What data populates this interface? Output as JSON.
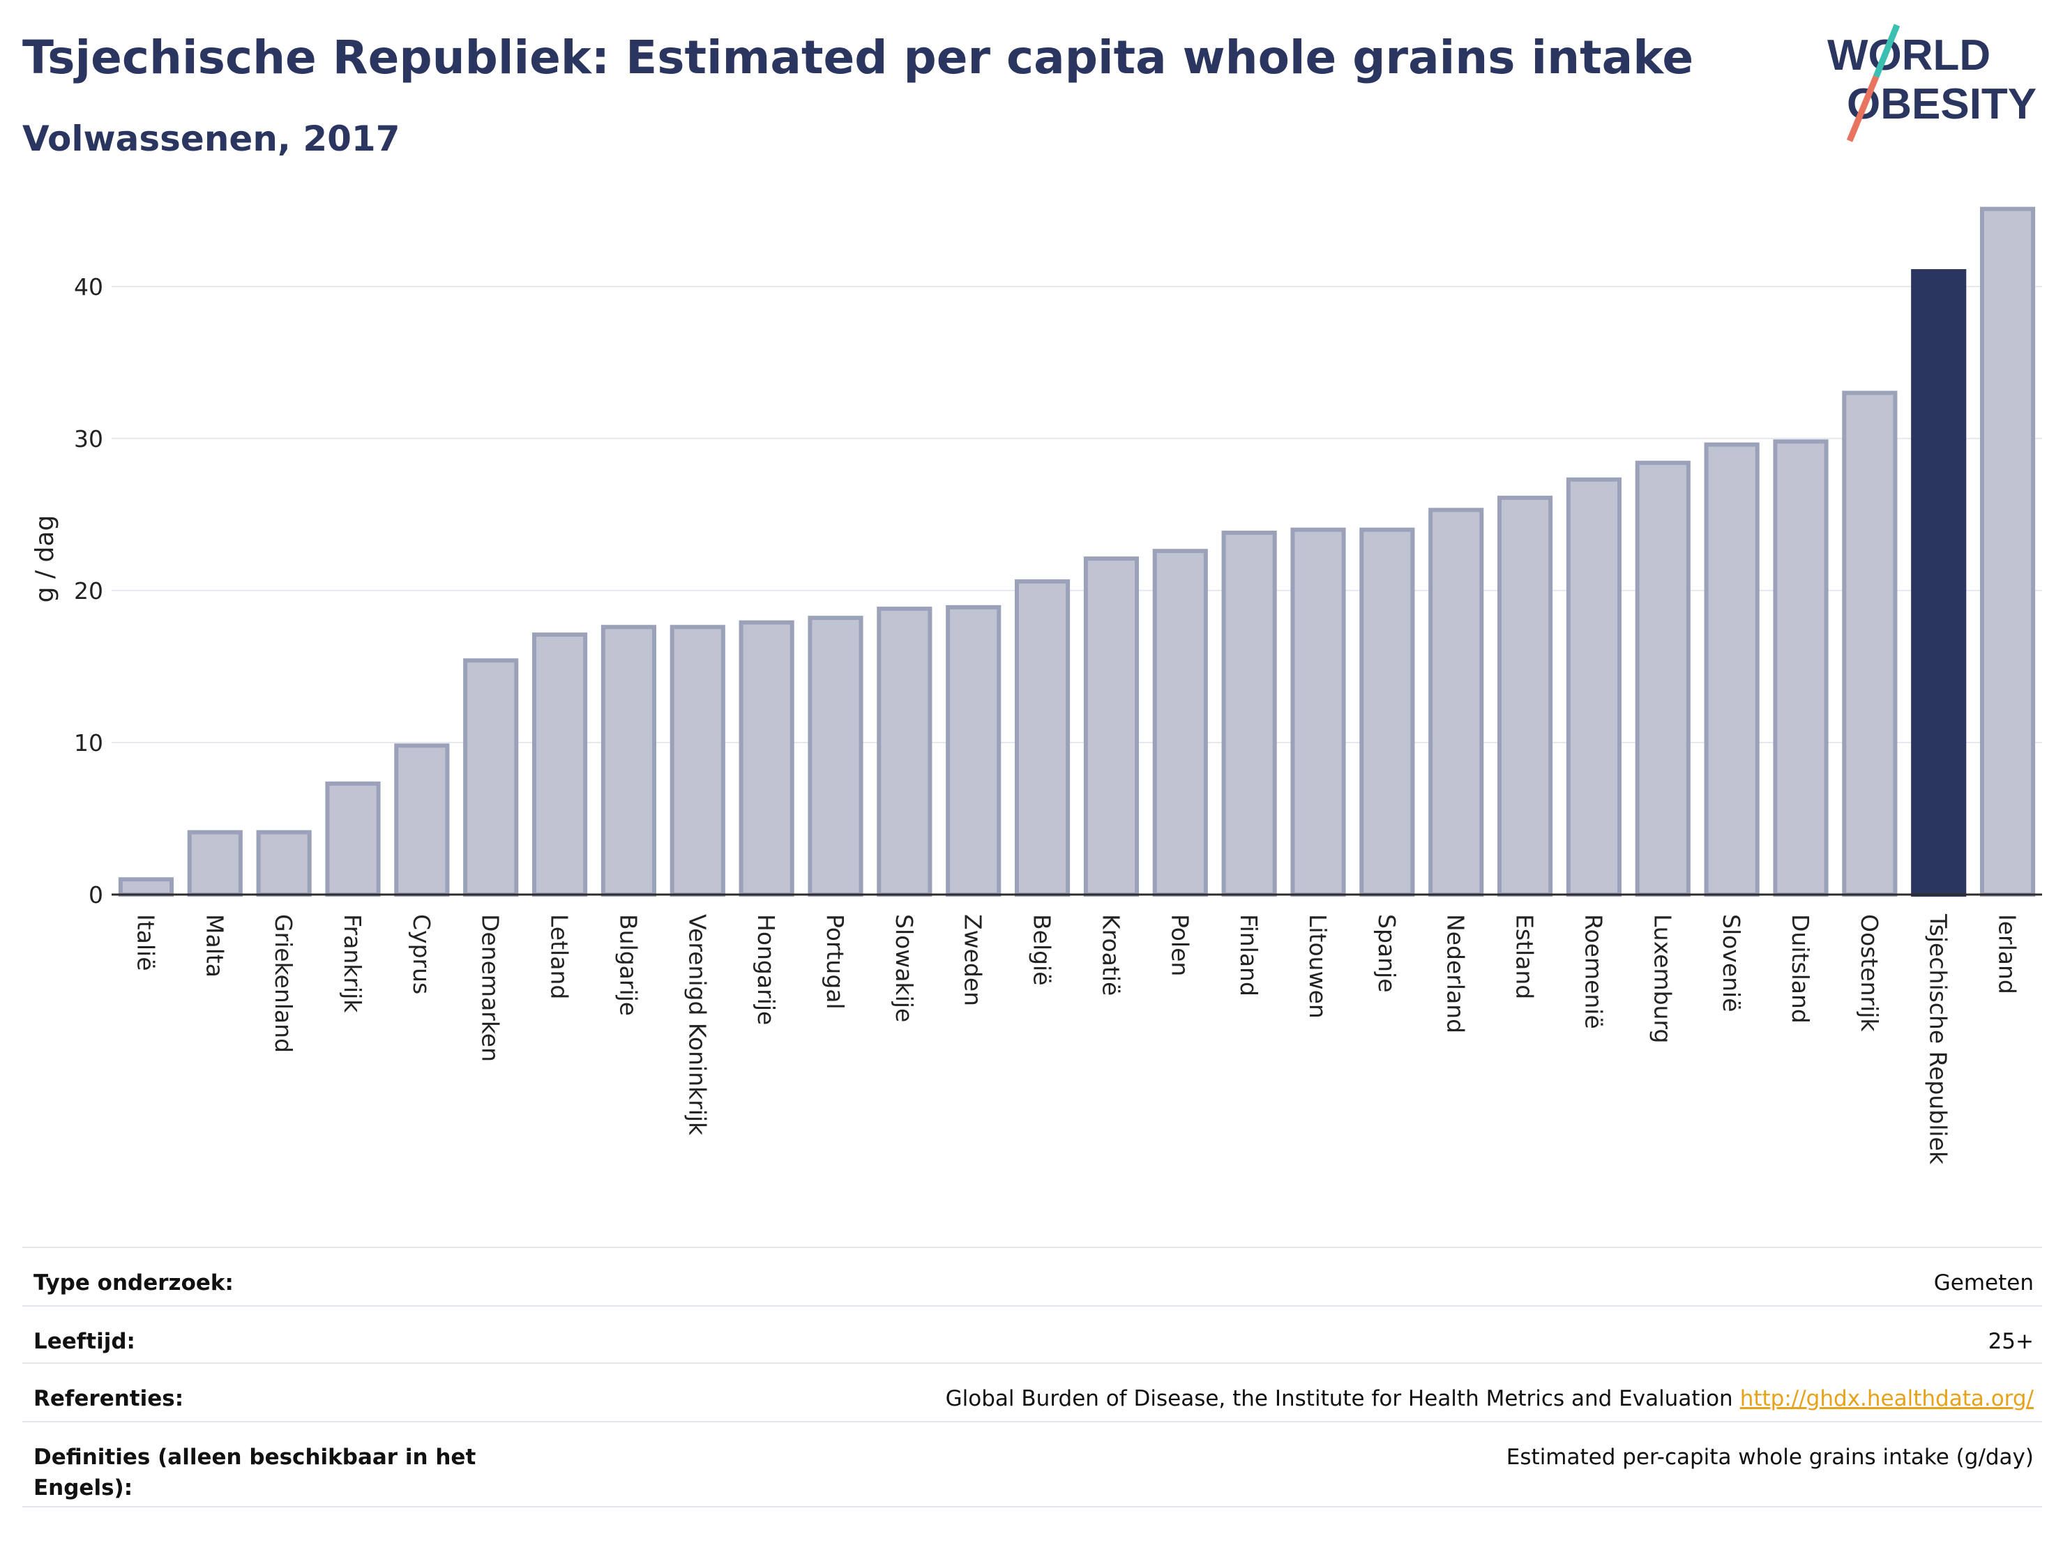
{
  "header": {
    "title": "Tsjechische Republiek: Estimated per capita whole grains intake",
    "subtitle": "Volwassenen, 2017"
  },
  "logo": {
    "line1": "WORLD",
    "line2": "OBESITY"
  },
  "chart_data": {
    "type": "bar",
    "ylabel": "g / dag",
    "ylim": [
      0,
      46
    ],
    "yticks": [
      0,
      10,
      20,
      30,
      40
    ],
    "grid": true,
    "categories": [
      "Italië",
      "Malta",
      "Griekenland",
      "Frankrijk",
      "Cyprus",
      "Denemarken",
      "Letland",
      "Bulgarije",
      "Verenigd Koninkrijk",
      "Hongarije",
      "Portugal",
      "Slowakije",
      "Zweden",
      "België",
      "Kroatië",
      "Polen",
      "Finland",
      "Litouwen",
      "Spanje",
      "Nederland",
      "Estland",
      "Roemenië",
      "Luxemburg",
      "Slovenië",
      "Duitsland",
      "Oostenrijk",
      "Tsjechische Republiek",
      "Ierland"
    ],
    "values": [
      1.0,
      4.1,
      4.1,
      7.3,
      9.8,
      15.4,
      17.1,
      17.6,
      17.6,
      17.9,
      18.2,
      18.8,
      18.9,
      20.6,
      22.1,
      22.6,
      23.8,
      24.0,
      24.0,
      25.3,
      26.1,
      27.3,
      28.4,
      29.6,
      29.8,
      33.0,
      41.0,
      45.1
    ],
    "highlight": "Tsjechische Republiek",
    "colors": {
      "bar": "#bfc3d2",
      "bar_edge": "#9ba1b8",
      "highlight": "#2a3560",
      "grid": "#e5e8ef",
      "axis": "#2d2d2d"
    }
  },
  "meta": [
    {
      "label": "Type onderzoek:",
      "value": "Gemeten"
    },
    {
      "label": "Leeftijd:",
      "value": "25+"
    },
    {
      "label": "Referenties:",
      "value": "Global Burden of Disease, the Institute for Health Metrics and Evaluation",
      "link": "http://ghdx.healthdata.org/"
    },
    {
      "label": "Definities (alleen beschikbaar in het Engels):",
      "value": "Estimated per-capita whole grains intake (g/day)"
    }
  ]
}
